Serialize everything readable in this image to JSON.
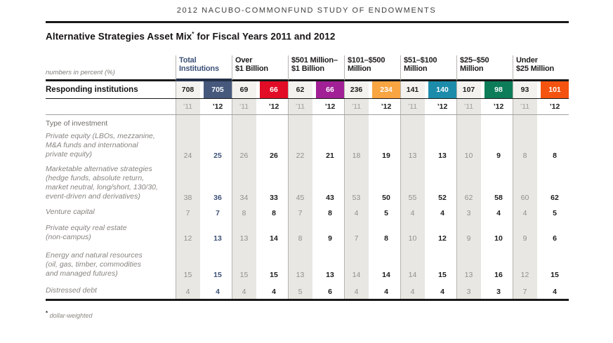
{
  "page": {
    "top_heading": "2012 NACUBO-COMMONFUND STUDY OF ENDOWMENTS",
    "title": "Alternative Strategies Asset Mix",
    "title_asterisk": "*",
    "title_rest": " for Fiscal Years 2011 and 2012",
    "footnote_symbol": "*",
    "footnote_text": "dollar-weighted"
  },
  "table": {
    "units_note": "numbers in percent (%)",
    "responding_label": "Responding institutions",
    "year_labels": [
      "’11",
      "’12"
    ],
    "groups": [
      {
        "title": "Total\nInstitutions",
        "color": "#46597d",
        "responding": [
          708,
          705
        ]
      },
      {
        "title": "Over\n$1 Billion",
        "color": "#e20c26",
        "responding": [
          69,
          66
        ]
      },
      {
        "title": "$501 Million–\n$1 Billion",
        "color": "#a12096",
        "responding": [
          62,
          66
        ]
      },
      {
        "title": "$101–$500\nMillion",
        "color": "#f9a542",
        "responding": [
          236,
          234
        ]
      },
      {
        "title": "$51–$100\nMillion",
        "color": "#1d8cab",
        "responding": [
          141,
          140
        ]
      },
      {
        "title": "$25–$50\nMillion",
        "color": "#0d7d59",
        "responding": [
          107,
          98
        ]
      },
      {
        "title": "Under\n$25 Million",
        "color": "#f4540f",
        "responding": [
          93,
          101
        ]
      }
    ],
    "rows": [
      {
        "label": "Type of investment",
        "heading": true
      },
      {
        "label": "Private equity (LBOs, mezzanine,\nM&A funds and international\nprivate equity)",
        "values": [
          [
            24,
            25
          ],
          [
            26,
            26
          ],
          [
            22,
            21
          ],
          [
            18,
            19
          ],
          [
            13,
            13
          ],
          [
            10,
            9
          ],
          [
            8,
            8
          ]
        ]
      },
      {
        "label": "Marketable alternative strategies\n(hedge funds, absolute return,\nmarket neutral, long/short, 130/30,\nevent-driven and derivatives)",
        "values": [
          [
            38,
            36
          ],
          [
            34,
            33
          ],
          [
            45,
            43
          ],
          [
            53,
            50
          ],
          [
            55,
            52
          ],
          [
            62,
            58
          ],
          [
            60,
            62
          ]
        ]
      },
      {
        "label": "Venture capital",
        "values": [
          [
            7,
            7
          ],
          [
            8,
            8
          ],
          [
            7,
            8
          ],
          [
            4,
            5
          ],
          [
            4,
            4
          ],
          [
            3,
            4
          ],
          [
            4,
            5
          ]
        ]
      },
      {
        "label": "Private equity real estate\n(non-campus)",
        "values": [
          [
            12,
            13
          ],
          [
            13,
            14
          ],
          [
            8,
            9
          ],
          [
            7,
            8
          ],
          [
            10,
            12
          ],
          [
            9,
            10
          ],
          [
            9,
            6
          ]
        ]
      },
      {
        "label": "Energy and natural resources\n(oil, gas, timber, commodities\nand managed futures)",
        "values": [
          [
            15,
            15
          ],
          [
            15,
            15
          ],
          [
            13,
            13
          ],
          [
            14,
            14
          ],
          [
            14,
            15
          ],
          [
            13,
            16
          ],
          [
            12,
            15
          ]
        ]
      },
      {
        "label": "Distressed debt",
        "values": [
          [
            4,
            4
          ],
          [
            4,
            4
          ],
          [
            5,
            6
          ],
          [
            4,
            4
          ],
          [
            4,
            4
          ],
          [
            3,
            3
          ],
          [
            7,
            4
          ]
        ]
      }
    ]
  }
}
